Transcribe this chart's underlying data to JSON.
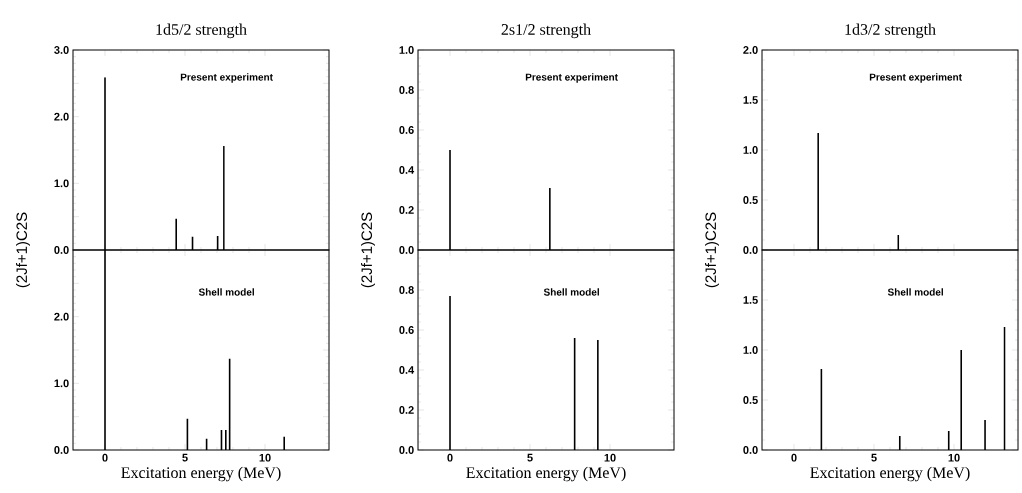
{
  "chart_data": [
    {
      "type": "bar",
      "title": "1d5/2  strength",
      "ylabel": "(2Jf+1)C2S",
      "annotations": [
        "Present experiment"
      ],
      "color": "#000000",
      "x": [
        0,
        4.45,
        5.47,
        7.04,
        7.43
      ],
      "values": [
        2.59,
        0.47,
        0.2,
        0.21,
        1.56
      ],
      "xlim": [
        -2,
        14
      ],
      "xticks": [
        0,
        5,
        10
      ],
      "ylim": [
        0,
        3
      ],
      "yticks": [
        {
          "value": 0,
          "label": "0.0"
        },
        {
          "value": 0.5,
          "label": null
        },
        {
          "value": 1,
          "label": "1.0"
        },
        {
          "value": 1.5,
          "label": null
        },
        {
          "value": 2,
          "label": "2.0"
        },
        {
          "value": 2.5,
          "label": null
        },
        {
          "value": 3,
          "label": "3.0"
        }
      ],
      "tick_labels": "y"
    },
    {
      "type": "bar",
      "title": "2s1/2  strength",
      "ylabel": "(2Jf+1)C2S",
      "annotations": [
        "Present experiment"
      ],
      "color": "#000000",
      "x": [
        0,
        6.24
      ],
      "values": [
        0.5,
        0.31
      ],
      "xlim": [
        -2,
        14
      ],
      "xticks": [
        0,
        5,
        10
      ],
      "ylim": [
        0,
        1
      ],
      "yticks": [
        {
          "value": 0,
          "label": "0.0"
        },
        {
          "value": 0.2,
          "label": "0.2"
        },
        {
          "value": 0.4,
          "label": "0.4"
        },
        {
          "value": 0.6,
          "label": "0.6"
        },
        {
          "value": 0.8,
          "label": "0.8"
        },
        {
          "value": 1,
          "label": "1.0"
        }
      ],
      "tick_labels": "y"
    },
    {
      "type": "bar",
      "title": "1d3/2  strength",
      "ylabel": "(2Jf+1)C2S",
      "annotations": [
        "Present experiment"
      ],
      "color": "#000000",
      "x": [
        1.51,
        6.52
      ],
      "values": [
        1.17,
        0.15
      ],
      "xlim": [
        -2,
        14
      ],
      "xticks": [
        0,
        5,
        10
      ],
      "ylim": [
        0,
        2
      ],
      "yticks": [
        {
          "value": 0,
          "label": "0.0"
        },
        {
          "value": 0.5,
          "label": "0.5"
        },
        {
          "value": 1,
          "label": "1.0"
        },
        {
          "value": 1.5,
          "label": "1.5"
        },
        {
          "value": 2,
          "label": "2.0"
        }
      ],
      "tick_labels": "y"
    },
    {
      "type": "bar",
      "xlabel": "Excitation energy      (MeV)",
      "annotations": [
        "Shell model"
      ],
      "color": "#000000",
      "x": [
        0,
        5.15,
        6.35,
        7.28,
        7.55,
        7.79,
        11.2
      ],
      "values": [
        3,
        0.47,
        0.17,
        0.3,
        0.3,
        1.37,
        0.2
      ],
      "xlim": [
        -2,
        14
      ],
      "xticks": [
        0,
        5,
        10
      ],
      "ylim": [
        0,
        3
      ],
      "yticks": [
        {
          "value": 0,
          "label": "0.0"
        },
        {
          "value": 0.5,
          "label": null
        },
        {
          "value": 1,
          "label": "1.0"
        },
        {
          "value": 1.5,
          "label": null
        },
        {
          "value": 2,
          "label": "2.0"
        },
        {
          "value": 2.5,
          "label": null
        },
        {
          "value": 3,
          "label": null
        }
      ]
    },
    {
      "type": "bar",
      "xlabel": "Excitation energy      (MeV)",
      "annotations": [
        "Shell model"
      ],
      "color": "#000000",
      "x": [
        0,
        7.79,
        9.24
      ],
      "values": [
        0.77,
        0.56,
        0.55
      ],
      "xlim": [
        -2,
        14
      ],
      "xticks": [
        0,
        5,
        10
      ],
      "ylim": [
        0,
        1
      ],
      "yticks": [
        {
          "value": 0,
          "label": "0.0"
        },
        {
          "value": 0.2,
          "label": "0.2"
        },
        {
          "value": 0.4,
          "label": "0.4"
        },
        {
          "value": 0.6,
          "label": "0.6"
        },
        {
          "value": 0.8,
          "label": "0.8"
        },
        {
          "value": 1,
          "label": null
        }
      ]
    },
    {
      "type": "bar",
      "xlabel": "Excitation energy      (MeV)",
      "annotations": [
        "Shell model"
      ],
      "color": "#000000",
      "x": [
        1.71,
        6.61,
        9.67,
        10.45,
        11.94,
        13.16
      ],
      "values": [
        0.81,
        0.14,
        0.19,
        1.0,
        0.3,
        1.23
      ],
      "xlim": [
        -2,
        14
      ],
      "xticks": [
        0,
        5,
        10
      ],
      "ylim": [
        0,
        2
      ],
      "yticks": [
        {
          "value": 0,
          "label": "0.0"
        },
        {
          "value": 0.5,
          "label": "0.5"
        },
        {
          "value": 1,
          "label": "1.0"
        },
        {
          "value": 1.5,
          "label": "1.5"
        },
        {
          "value": 2,
          "label": null
        }
      ]
    }
  ]
}
